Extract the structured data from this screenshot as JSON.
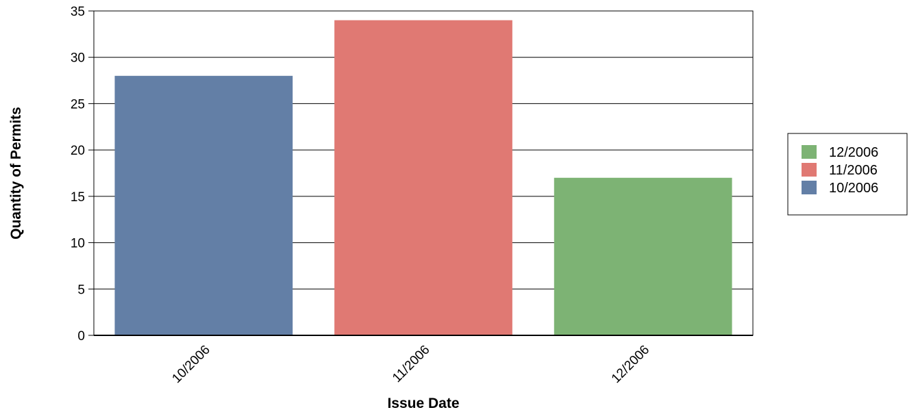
{
  "chart_data": {
    "type": "bar",
    "categories": [
      "10/2006",
      "11/2006",
      "12/2006"
    ],
    "values": [
      28,
      34,
      17
    ],
    "bar_colors": [
      "#637fa6",
      "#e07973",
      "#7db374"
    ],
    "xlabel": "Issue Date",
    "ylabel": "Quantity of Permits",
    "ylim": [
      0,
      35
    ],
    "yticks": [
      0,
      5,
      10,
      15,
      20,
      25,
      30,
      35
    ],
    "grid": true,
    "legend": {
      "placement": "right",
      "entries": [
        {
          "label": "12/2006",
          "color": "#7db374"
        },
        {
          "label": "11/2006",
          "color": "#e07973"
        },
        {
          "label": "10/2006",
          "color": "#637fa6"
        }
      ]
    }
  }
}
